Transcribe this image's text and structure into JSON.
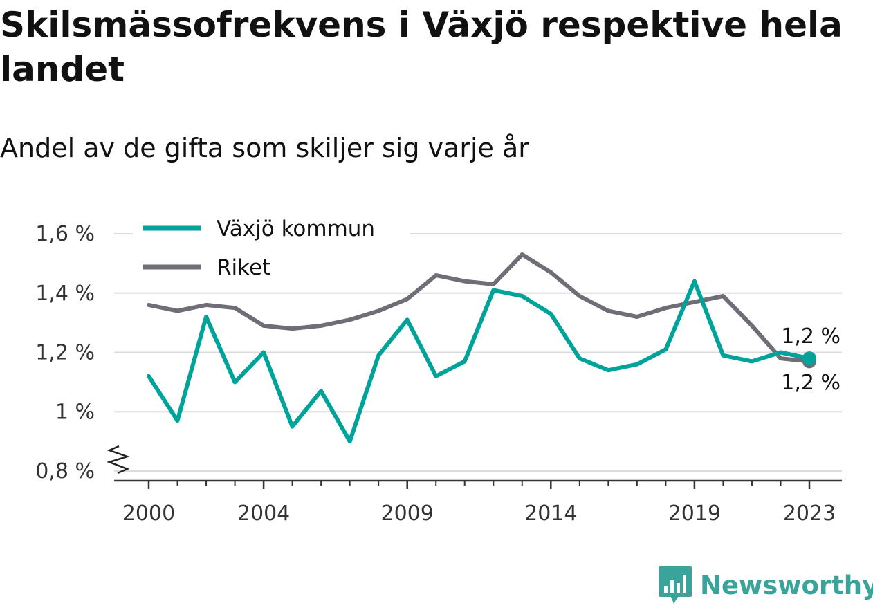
{
  "title": "Skilsmässofrekvens i Växjö respektive hela landet",
  "subtitle": "Andel av de gifta som skiljer sig varje år",
  "logo": {
    "text": "Newsworthy",
    "icon": "bar-chart-speech-bubble-icon"
  },
  "colors": {
    "vaxjo": "#00a39a",
    "riket": "#6f6d75",
    "grid": "#dddddd",
    "axis": "#333333",
    "brand": "#3aa39a"
  },
  "chart_data": {
    "type": "line",
    "x": [
      2000,
      2001,
      2002,
      2003,
      2004,
      2005,
      2006,
      2007,
      2008,
      2009,
      2010,
      2011,
      2012,
      2013,
      2014,
      2015,
      2016,
      2017,
      2018,
      2019,
      2020,
      2021,
      2022,
      2023
    ],
    "series": [
      {
        "name": "Växjö kommun",
        "values": [
          1.12,
          0.97,
          1.32,
          1.1,
          1.2,
          0.95,
          1.07,
          0.9,
          1.19,
          1.31,
          1.12,
          1.17,
          1.41,
          1.39,
          1.33,
          1.18,
          1.14,
          1.16,
          1.21,
          1.44,
          1.19,
          1.17,
          1.2,
          1.18
        ]
      },
      {
        "name": "Riket",
        "values": [
          1.36,
          1.34,
          1.36,
          1.35,
          1.29,
          1.28,
          1.29,
          1.31,
          1.34,
          1.38,
          1.46,
          1.44,
          1.43,
          1.53,
          1.47,
          1.39,
          1.34,
          1.32,
          1.35,
          1.37,
          1.39,
          1.29,
          1.18,
          1.17
        ]
      }
    ],
    "xticks": [
      "2000",
      "2004",
      "2009",
      "2014",
      "2019",
      "2023"
    ],
    "xtick_values": [
      2000,
      2004,
      2009,
      2014,
      2019,
      2023
    ],
    "yticks": [
      "0,8 %",
      "1 %",
      "1,2 %",
      "1,4 %",
      "1,6 %"
    ],
    "ytick_values": [
      0.8,
      1.0,
      1.2,
      1.4,
      1.6
    ],
    "ylim": [
      0.8,
      1.6
    ],
    "xlim": [
      2000,
      2023
    ],
    "end_labels": [
      "1,2 %",
      "1,2 %"
    ],
    "legend_position": "top-left",
    "grid": true,
    "axis_break": true
  }
}
